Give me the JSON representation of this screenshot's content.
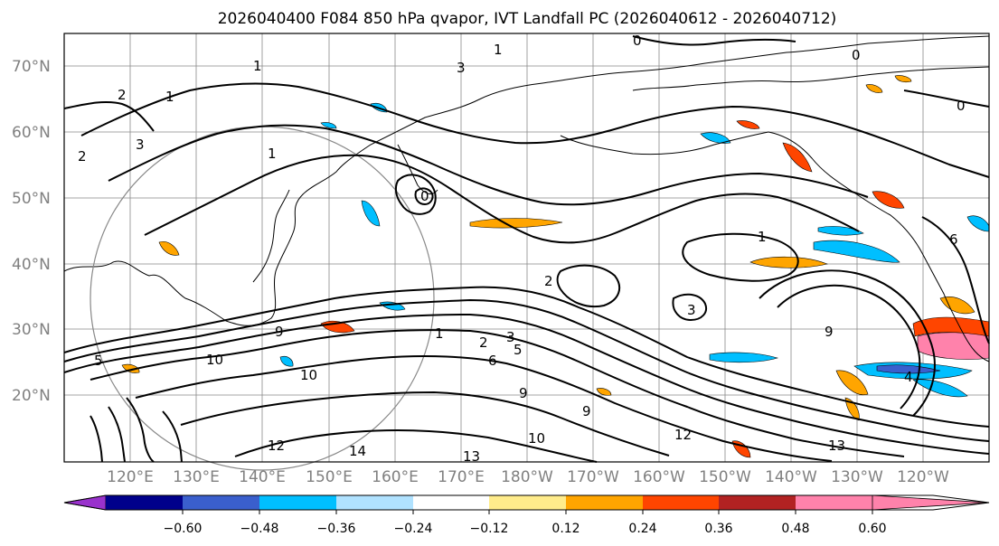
{
  "title": "2026040400 F084 850 hPa qvapor, IVT Landfall PC (2026040612 - 2026040712)",
  "lat_labels": [
    "70°N",
    "60°N",
    "50°N",
    "40°N",
    "30°N",
    "20°N"
  ],
  "lon_labels": [
    "120°E",
    "130°E",
    "140°E",
    "150°E",
    "160°E",
    "170°E",
    "180°W",
    "170°W",
    "160°W",
    "150°W",
    "140°W",
    "130°W",
    "120°W"
  ],
  "colorbar": {
    "tick_labels": [
      "−0.60",
      "−0.48",
      "−0.36",
      "−0.24",
      "−0.12",
      "0.12",
      "0.24",
      "0.36",
      "0.48",
      "0.60"
    ],
    "colors": [
      "#9932CC",
      "#00008B",
      "#3A5FCD",
      "#00BFFF",
      "#B0E2FF",
      "#FFFFFF",
      "#FFEC8B",
      "#FFA500",
      "#FF4500",
      "#B22222",
      "#FF82AB"
    ]
  },
  "contour_labels": [
    "0",
    "1",
    "2",
    "3",
    "4",
    "5",
    "6",
    "9",
    "10",
    "12",
    "13",
    "14"
  ],
  "map": {
    "lat_range": [
      10,
      75
    ],
    "lon_range_east": [
      110,
      250
    ],
    "projection": "cylindrical"
  }
}
